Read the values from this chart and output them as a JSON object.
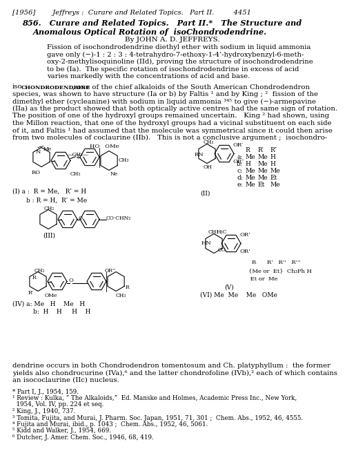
{
  "figsize": [
    5.0,
    6.79
  ],
  "dpi": 100,
  "bg": "#ffffff",
  "header": "[1956]        Jeffreys :  Curare and Related Topics.   Part II.         4451",
  "title1": "856.   Curare and Related Topics.   Part II.*   The Structure and",
  "title2": "Anomalous Optical Rotation of  isoChondrodendrine.",
  "author": "By JOHN A. D. JEFFREYS.",
  "abstract_lines": [
    "Fission of isochondrodendrine diethyl ether with sodium in liquid ammonia",
    "gave only (−)-1 : 2 : 3 : 4-tetrahydro-7-ethoxy-1-4’-hydroxybenzyl-6-meth-",
    "oxy-2-methylisoquinoline (IId), proving the structure of isochondrodendrine",
    "to be (Ia).  The specific rotation of isochondrodendrine in excess of acid",
    "varies markedly with the concentrations of acid and base."
  ],
  "body_lines": [
    "species, was shown to have structure (Ia or b) by Faltis ¹ and by King ; ²  fission of the",
    "dimethyl ether (cycleanine) with sodium in liquid ammonia ³⁴⁵ to give (−)-armepavine",
    "(IIa) as the product showed that both optically active centres had the same sign of rotation.",
    "The position of one of the hydroxyl groups remained uncertain.   King ² had shown, using",
    "the Millon reaction, that one of the hydroxyl groups had a vicinal substituent on each side",
    "of it, and Faltis ¹ had assumed that the molecule was symmetrical since it could then arise",
    "from two molecules of coclaurine (IIb).   This is not a conclusive argument ;  isochondro-"
  ],
  "body_line0_prefix": "iso",
  "body_line0_caps": "CHONDRODENDRINE",
  "body_line0_rest": ", one of the chief alkaloids of the South American Chondrodendron",
  "cont_lines": [
    "dendrine occurs in both Chondrodendron tomentosum and Ch. platyphyllum :  the former",
    "yields also chondrocurine (IVa),⁶ and the latter chondrofoline (IVb),² each of which contains",
    "an isococlaurine (IIc) nucleus."
  ],
  "footnotes": [
    "* Part I, J., 1954, 159.",
    "¹ Review : Kulka, “ The Alkaloids,”  Ed. Manske and Holmes, Academic Press Inc., New York,",
    "  1954, Vol. IV, pp. 224 et seq.",
    "² King, J., 1940, 737.",
    "³ Tomita, Fujita, and Murai, J. Pharm. Soc. Japan, 1951, 71, 301 ;  Chem. Abs., 1952, 46, 4555.",
    "⁴ Fujita and Murai, ibid., p. 1043 ;  Chem. Abs., 1952, 46, 5061.",
    "⁵ Kidd and Walker, J., 1954, 669.",
    "⁶ Dutcher, J. Amer. Chem. Soc., 1946, 68, 419."
  ]
}
